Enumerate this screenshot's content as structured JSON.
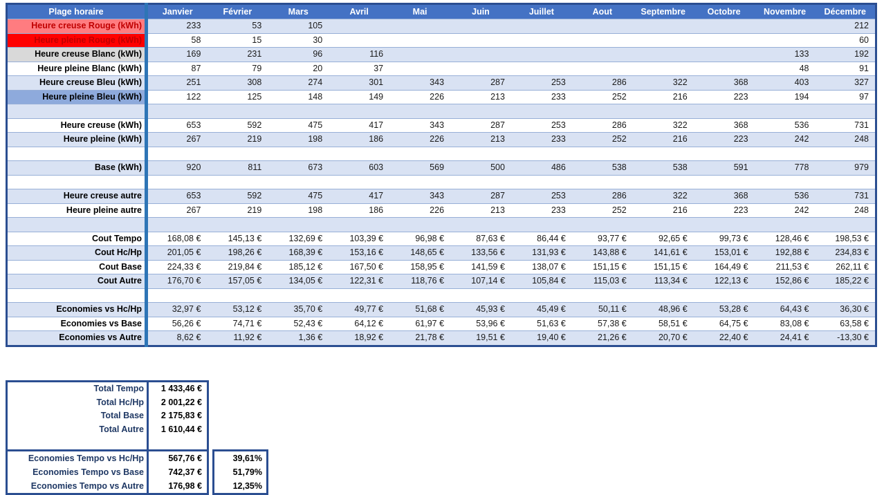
{
  "colors": {
    "header_blue": "#4472C4",
    "zebra_blue": "#D9E2F3",
    "bleu_medium": "#8EAADC",
    "rouge_clair": "#FF7C80",
    "rouge": "#FF0000",
    "rouge_text": "#C00000",
    "blanc_gris": "#D9D9D9",
    "separator_blue": "#2E75B6",
    "border_navy": "#2B4E91"
  },
  "main_table": {
    "header": {
      "label_col": "Plage horaire",
      "months": [
        "Janvier",
        "Février",
        "Mars",
        "Avril",
        "Mai",
        "Juin",
        "Juillet",
        "Aout",
        "Septembre",
        "Octobre",
        "Novembre",
        "Décembre"
      ]
    },
    "rows": [
      {
        "label": "Heure creuse Rouge (kWh)",
        "label_style": "rouge-clair",
        "values": [
          "233",
          "53",
          "105",
          "",
          "",
          "",
          "",
          "",
          "",
          "",
          "",
          "212"
        ]
      },
      {
        "label": "Heure pleine Rouge (kWh)",
        "label_style": "rouge",
        "values": [
          "58",
          "15",
          "30",
          "",
          "",
          "",
          "",
          "",
          "",
          "",
          "",
          "60"
        ]
      },
      {
        "label": "Heure creuse Blanc (kWh)",
        "label_style": "blanc-gris",
        "values": [
          "169",
          "231",
          "96",
          "116",
          "",
          "",
          "",
          "",
          "",
          "",
          "133",
          "192"
        ]
      },
      {
        "label": "Heure pleine Blanc (kWh)",
        "label_style": "blanc",
        "values": [
          "87",
          "79",
          "20",
          "37",
          "",
          "",
          "",
          "",
          "",
          "",
          "48",
          "91"
        ]
      },
      {
        "label": "Heure creuse Bleu (kWh)",
        "label_style": "bleu-clair",
        "values": [
          "251",
          "308",
          "274",
          "301",
          "343",
          "287",
          "253",
          "286",
          "322",
          "368",
          "403",
          "327"
        ]
      },
      {
        "label": "Heure pleine Bleu (kWh)",
        "label_style": "bleu",
        "values": [
          "122",
          "125",
          "148",
          "149",
          "226",
          "213",
          "233",
          "252",
          "216",
          "223",
          "194",
          "97"
        ]
      },
      {
        "label": "",
        "spacer": true,
        "values": [
          "",
          "",
          "",
          "",
          "",
          "",
          "",
          "",
          "",
          "",
          "",
          ""
        ]
      },
      {
        "label": "Heure creuse (kWh)",
        "values": [
          "653",
          "592",
          "475",
          "417",
          "343",
          "287",
          "253",
          "286",
          "322",
          "368",
          "536",
          "731"
        ]
      },
      {
        "label": "Heure pleine (kWh)",
        "values": [
          "267",
          "219",
          "198",
          "186",
          "226",
          "213",
          "233",
          "252",
          "216",
          "223",
          "242",
          "248"
        ]
      },
      {
        "label": "",
        "spacer": true,
        "values": [
          "",
          "",
          "",
          "",
          "",
          "",
          "",
          "",
          "",
          "",
          "",
          ""
        ]
      },
      {
        "label": "Base (kWh)",
        "values": [
          "920",
          "811",
          "673",
          "603",
          "569",
          "500",
          "486",
          "538",
          "538",
          "591",
          "778",
          "979"
        ]
      },
      {
        "label": "",
        "spacer": true,
        "values": [
          "",
          "",
          "",
          "",
          "",
          "",
          "",
          "",
          "",
          "",
          "",
          ""
        ]
      },
      {
        "label": "Heure creuse autre",
        "values": [
          "653",
          "592",
          "475",
          "417",
          "343",
          "287",
          "253",
          "286",
          "322",
          "368",
          "536",
          "731"
        ]
      },
      {
        "label": "Heure pleine autre",
        "values": [
          "267",
          "219",
          "198",
          "186",
          "226",
          "213",
          "233",
          "252",
          "216",
          "223",
          "242",
          "248"
        ]
      },
      {
        "label": "",
        "spacer": true,
        "values": [
          "",
          "",
          "",
          "",
          "",
          "",
          "",
          "",
          "",
          "",
          "",
          ""
        ]
      },
      {
        "label": "Cout Tempo",
        "values": [
          "168,08 €",
          "145,13 €",
          "132,69 €",
          "103,39 €",
          "96,98 €",
          "87,63 €",
          "86,44 €",
          "93,77 €",
          "92,65 €",
          "99,73 €",
          "128,46 €",
          "198,53 €"
        ]
      },
      {
        "label": "Cout Hc/Hp",
        "values": [
          "201,05 €",
          "198,26 €",
          "168,39 €",
          "153,16 €",
          "148,65 €",
          "133,56 €",
          "131,93 €",
          "143,88 €",
          "141,61 €",
          "153,01 €",
          "192,88 €",
          "234,83 €"
        ]
      },
      {
        "label": "Cout Base",
        "values": [
          "224,33 €",
          "219,84 €",
          "185,12 €",
          "167,50 €",
          "158,95 €",
          "141,59 €",
          "138,07 €",
          "151,15 €",
          "151,15 €",
          "164,49 €",
          "211,53 €",
          "262,11 €"
        ]
      },
      {
        "label": "Cout Autre",
        "values": [
          "176,70 €",
          "157,05 €",
          "134,05 €",
          "122,31 €",
          "118,76 €",
          "107,14 €",
          "105,84 €",
          "115,03 €",
          "113,34 €",
          "122,13 €",
          "152,86 €",
          "185,22 €"
        ]
      },
      {
        "label": "",
        "spacer": true,
        "values": [
          "",
          "",
          "",
          "",
          "",
          "",
          "",
          "",
          "",
          "",
          "",
          ""
        ]
      },
      {
        "label": "Economies vs Hc/Hp",
        "values": [
          "32,97 €",
          "53,12 €",
          "35,70 €",
          "49,77 €",
          "51,68 €",
          "45,93 €",
          "45,49 €",
          "50,11 €",
          "48,96 €",
          "53,28 €",
          "64,43 €",
          "36,30 €"
        ]
      },
      {
        "label": "Economies vs Base",
        "values": [
          "56,26 €",
          "74,71 €",
          "52,43 €",
          "64,12 €",
          "61,97 €",
          "53,96 €",
          "51,63 €",
          "57,38 €",
          "58,51 €",
          "64,75 €",
          "83,08 €",
          "63,58 €"
        ]
      },
      {
        "label": "Economies vs Autre",
        "values": [
          "8,62 €",
          "11,92 €",
          "1,36 €",
          "18,92 €",
          "21,78 €",
          "19,51 €",
          "19,40 €",
          "21,26 €",
          "20,70 €",
          "22,40 €",
          "24,41 €",
          "-13,30 €"
        ]
      }
    ]
  },
  "summary": {
    "totals": [
      {
        "label": "Total Tempo",
        "value": "1 433,46 €"
      },
      {
        "label": "Total Hc/Hp",
        "value": "2 001,22 €"
      },
      {
        "label": "Total Base",
        "value": "2 175,83 €"
      },
      {
        "label": "Total Autre",
        "value": "1 610,44 €"
      }
    ],
    "economies": [
      {
        "label": "Economies Tempo vs Hc/Hp",
        "value": "567,76 €",
        "percent": "39,61%"
      },
      {
        "label": "Economies Tempo vs Base",
        "value": "742,37 €",
        "percent": "51,79%"
      },
      {
        "label": "Economies Tempo vs Autre",
        "value": "176,98 €",
        "percent": "12,35%"
      }
    ]
  }
}
